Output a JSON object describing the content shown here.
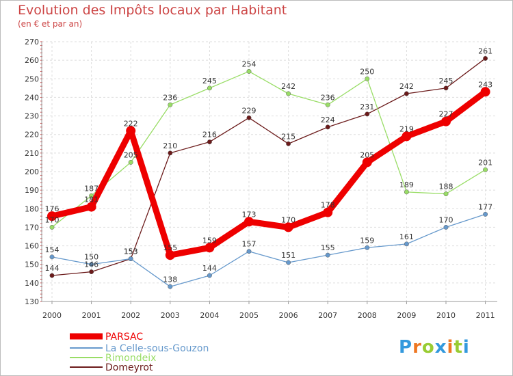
{
  "chart_data": {
    "type": "line",
    "title": "Evolution des Impôts locaux par Habitant",
    "subtitle": "(en € et par an)",
    "x": [
      "2000",
      "2001",
      "2002",
      "2003",
      "2004",
      "2005",
      "2006",
      "2007",
      "2008",
      "2009",
      "2010",
      "2011"
    ],
    "yticks": [
      130,
      140,
      150,
      160,
      170,
      180,
      190,
      200,
      210,
      220,
      230,
      240,
      250,
      260,
      270
    ],
    "ylim": [
      130,
      270
    ],
    "grid": true,
    "series": [
      {
        "name": "Domeyrot",
        "color": "#6b1a1a",
        "values": [
          144,
          146,
          153,
          210,
          216,
          229,
          215,
          224,
          231,
          242,
          245,
          261
        ]
      },
      {
        "name": "Rimondeix",
        "color": "#99dd66",
        "values": [
          170,
          187,
          205,
          236,
          245,
          254,
          242,
          236,
          250,
          189,
          188,
          201
        ]
      },
      {
        "name": "La Celle-sous-Gouzon",
        "color": "#6699cc",
        "values": [
          154,
          150,
          153,
          138,
          144,
          157,
          151,
          155,
          159,
          161,
          170,
          177
        ]
      },
      {
        "name": "PARSAC",
        "color": "#ee0000",
        "values": [
          176,
          181,
          222,
          155,
          159,
          173,
          170,
          178,
          205,
          219,
          227,
          243
        ]
      }
    ],
    "legend": [
      "PARSAC",
      "La Celle-sous-Gouzon",
      "Rimondeix",
      "Domeyrot"
    ]
  },
  "logo": {
    "letters": [
      "P",
      "r",
      "o",
      "x",
      "i",
      "t",
      "i"
    ],
    "colors": [
      "#3399dd",
      "#ee7722",
      "#99cc33",
      "#3399dd",
      "#ee7722",
      "#99cc33",
      "#3399dd"
    ]
  }
}
